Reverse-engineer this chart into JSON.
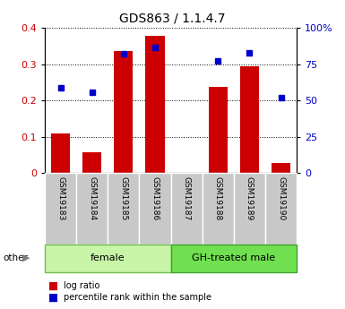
{
  "title": "GDS863 / 1.1.4.7",
  "samples": [
    "GSM19183",
    "GSM19184",
    "GSM19185",
    "GSM19186",
    "GSM19187",
    "GSM19188",
    "GSM19189",
    "GSM19190"
  ],
  "log_ratio": [
    0.11,
    0.058,
    0.335,
    0.377,
    0.0,
    0.237,
    0.295,
    0.028
  ],
  "percentile_rank_pct": [
    58.75,
    55.5,
    82.0,
    86.75,
    0.0,
    77.5,
    82.5,
    51.75
  ],
  "groups": [
    {
      "label": "female",
      "start": 0,
      "end": 3,
      "color": "#c8f5a8",
      "edgecolor": "#70c050"
    },
    {
      "label": "GH-treated male",
      "start": 4,
      "end": 7,
      "color": "#70e050",
      "edgecolor": "#40a030"
    }
  ],
  "bar_color": "#cc0000",
  "dot_color": "#0000cc",
  "ylim_left": [
    0,
    0.4
  ],
  "ylim_right": [
    0,
    100
  ],
  "yticks_left": [
    0,
    0.1,
    0.2,
    0.3,
    0.4
  ],
  "yticks_right": [
    0,
    25,
    50,
    75,
    100
  ],
  "ytick_labels_left": [
    "0",
    "0.1",
    "0.2",
    "0.3",
    "0.4"
  ],
  "ytick_labels_right": [
    "0",
    "25",
    "50",
    "75",
    "100%"
  ],
  "background_color": "#ffffff",
  "tick_label_color_left": "#cc0000",
  "tick_label_color_right": "#0000cc",
  "bar_width": 0.6,
  "legend_items": [
    "log ratio",
    "percentile rank within the sample"
  ],
  "other_label": "other",
  "sample_area_color": "#c8c8c8",
  "title_fontsize": 10,
  "tick_fontsize": 8,
  "label_fontsize": 8,
  "sample_fontsize": 6.5
}
